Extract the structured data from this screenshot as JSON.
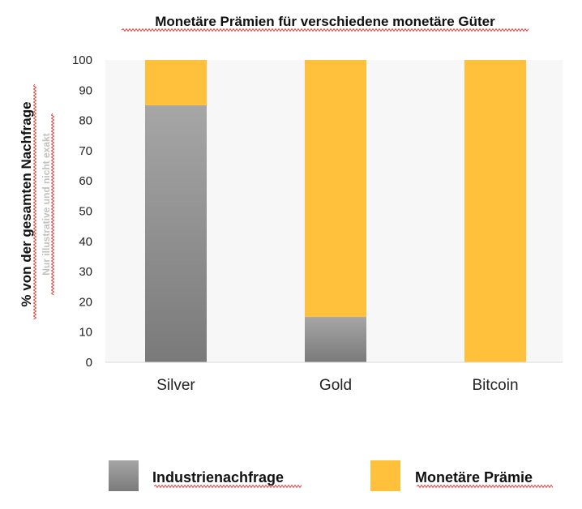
{
  "chart_data": {
    "type": "bar",
    "stacked": true,
    "title": "Monetäre Prämien für verschiedene monetäre Güter",
    "ylabel": "% von der gesamten Nachfrage",
    "note": "Nur illustrative und nicht exakt",
    "categories": [
      "Silver",
      "Gold",
      "Bitcoin"
    ],
    "series": [
      {
        "name": "Industrienachfrage",
        "values": [
          85,
          15,
          0
        ],
        "color": "#8c8c8c"
      },
      {
        "name": "Monetäre Prämie",
        "values": [
          15,
          85,
          100
        ],
        "color": "#ffc13b"
      }
    ],
    "ylim": [
      0,
      100
    ],
    "yticks": [
      0,
      10,
      20,
      30,
      40,
      50,
      60,
      70,
      80,
      90,
      100
    ],
    "grid": false,
    "legend": "bottom",
    "plot_background": "#f7f7f7"
  }
}
